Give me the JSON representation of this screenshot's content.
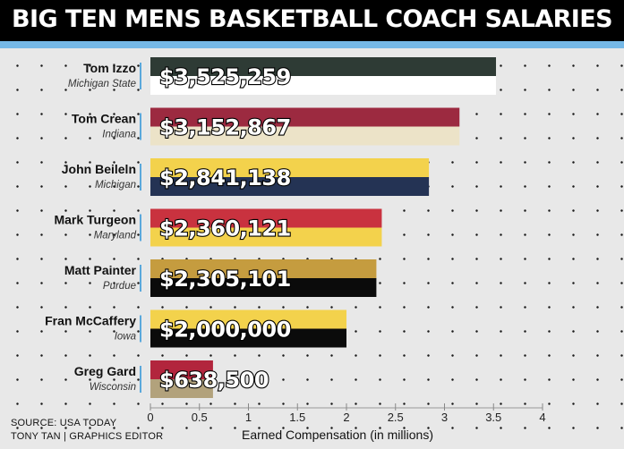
{
  "header": {
    "title": "BIG TEN MENS BASKETBALL COACH SALARIES"
  },
  "footer": {
    "source": "SOURCE: USA TODAY",
    "credit": "TONY TAN | GRAPHICS EDITOR"
  },
  "chart_data": {
    "type": "bar",
    "orientation": "horizontal",
    "title": "BIG TEN MENS BASKETBALL COACH SALARIES",
    "xlabel": "Earned Compensation (in millions)",
    "ylabel": "",
    "xlim": [
      0,
      4
    ],
    "xticks": [
      "0",
      "0.5",
      "1",
      "1.5",
      "2",
      "2.5",
      "3",
      "3.5",
      "4"
    ],
    "grid": false,
    "legend": "none",
    "rows": [
      {
        "coach": "Tom Izzo",
        "school": "Michigan State",
        "value": 3.525259,
        "label": "$3,525,259",
        "colors": [
          "#2e3b35",
          "#ffffff"
        ]
      },
      {
        "coach": "Tom Crean",
        "school": "Indiana",
        "value": 3.152867,
        "label": "$3,152,867",
        "colors": [
          "#9c2a40",
          "#ece3c8"
        ]
      },
      {
        "coach": "John Beileln",
        "school": "Michigan",
        "value": 2.841138,
        "label": "$2,841,138",
        "colors": [
          "#f3d24c",
          "#243354"
        ]
      },
      {
        "coach": "Mark Turgeon",
        "school": "Maryland",
        "value": 2.360121,
        "label": "$2,360,121",
        "colors": [
          "#c9323f",
          "#f3d24c"
        ]
      },
      {
        "coach": "Matt Painter",
        "school": "Purdue",
        "value": 2.305101,
        "label": "$2,305,101",
        "colors": [
          "#c59c3f",
          "#0b0b0b"
        ]
      },
      {
        "coach": "Fran McCaffery",
        "school": "Iowa",
        "value": 2.0,
        "label": "$2,000,000",
        "colors": [
          "#f3d24c",
          "#0b0b0b"
        ]
      },
      {
        "coach": "Greg Gard",
        "school": "Wisconsin",
        "value": 0.6385,
        "label": "$638,500",
        "colors": [
          "#b2253d",
          "#b2a27c"
        ]
      }
    ]
  }
}
